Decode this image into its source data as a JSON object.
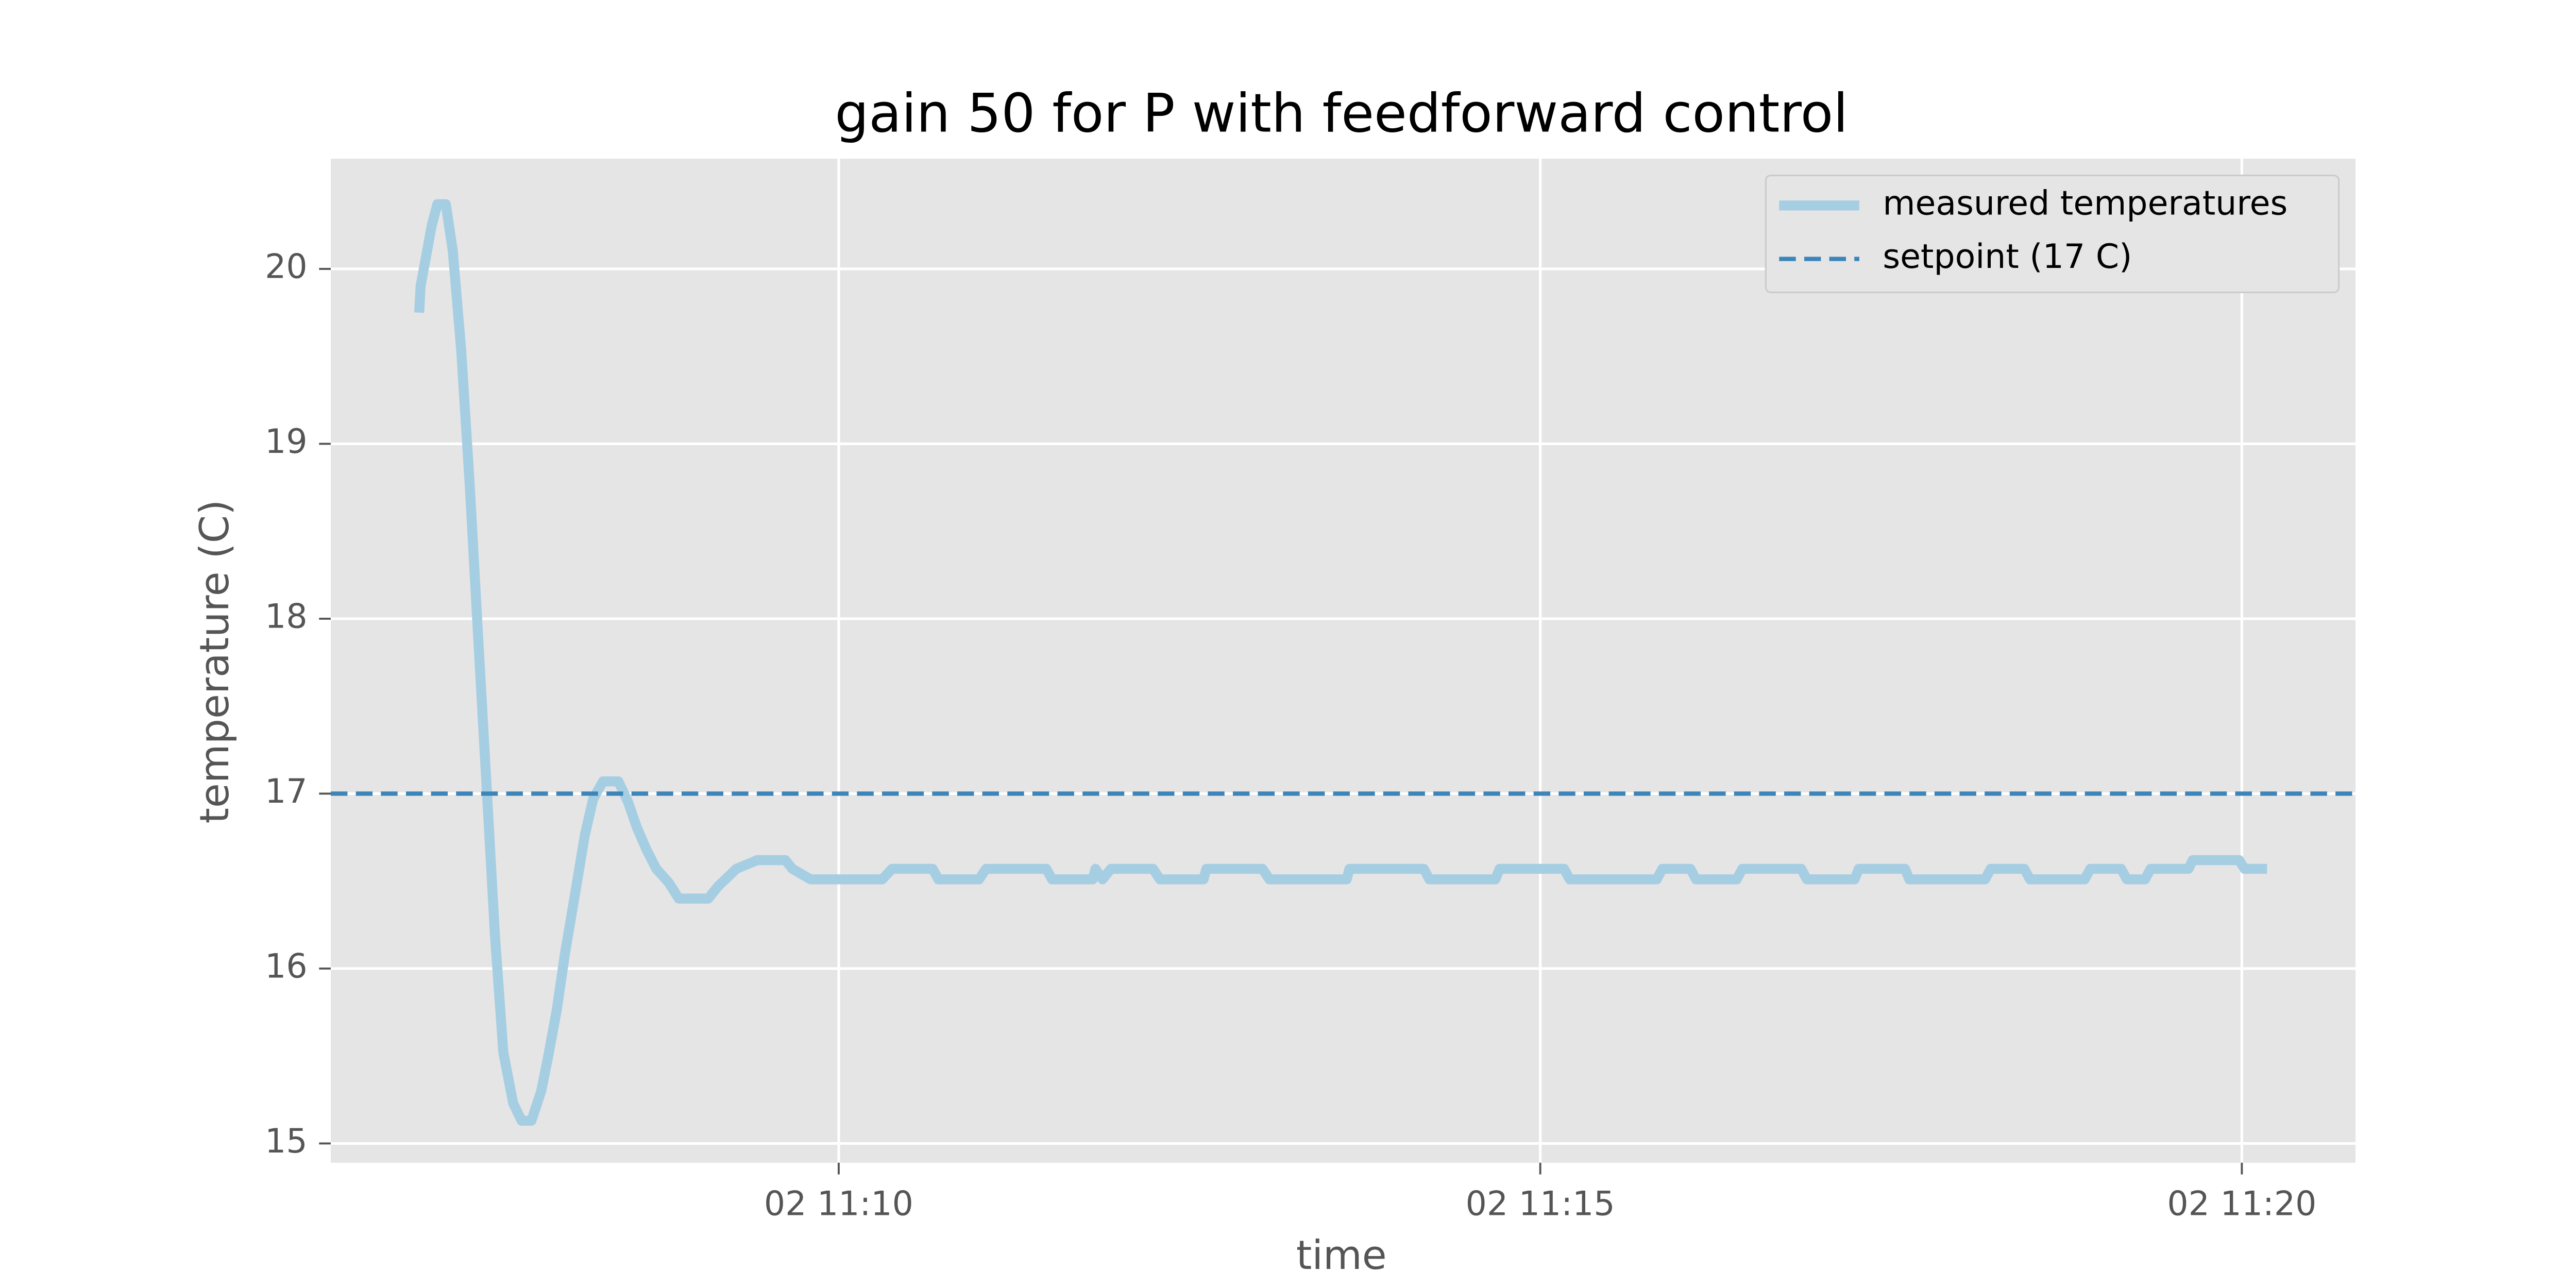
{
  "chart_data": {
    "type": "line",
    "title": "gain 50 for P with feedforward control",
    "xlabel": "time",
    "ylabel": "temperature (C)",
    "xlim": [
      6.38,
      20.81
    ],
    "xticks": [
      {
        "value": 10,
        "label": "02 11:10"
      },
      {
        "value": 15,
        "label": "02 11:15"
      },
      {
        "value": 20,
        "label": "02 11:20"
      }
    ],
    "ylim": [
      14.89,
      20.63
    ],
    "yticks": [
      15,
      16,
      17,
      18,
      19,
      20
    ],
    "grid": true,
    "legend": "upper right",
    "series": [
      {
        "name": "measured temperatures",
        "color": "#a6cee3",
        "x": [
          7.01,
          7.02,
          7.1,
          7.14,
          7.2,
          7.25,
          7.31,
          7.37,
          7.43,
          7.49,
          7.55,
          7.61,
          7.68,
          7.74,
          7.81,
          7.88,
          7.93,
          7.99,
          8.05,
          8.13,
          8.19,
          8.25,
          8.32,
          8.43,
          8.5,
          8.56,
          8.63,
          8.7,
          8.79,
          8.86,
          9.07,
          9.14,
          9.27,
          9.42,
          9.62,
          9.67,
          9.8,
          10.31,
          10.38,
          10.67,
          10.71,
          11.0,
          11.05,
          11.48,
          11.52,
          11.81,
          11.83,
          11.88,
          11.94,
          12.24,
          12.29,
          12.6,
          12.62,
          13.02,
          13.07,
          13.62,
          13.64,
          14.17,
          14.21,
          14.68,
          14.71,
          15.17,
          15.21,
          15.83,
          15.87,
          16.07,
          16.11,
          16.4,
          16.44,
          16.86,
          16.9,
          17.24,
          17.27,
          17.6,
          17.63,
          18.17,
          18.21,
          18.45,
          18.49,
          18.88,
          18.92,
          19.14,
          19.18,
          19.31,
          19.35,
          19.62,
          19.65,
          19.98,
          20.02,
          20.18
        ],
        "values": [
          19.75,
          19.9,
          20.25,
          20.37,
          20.37,
          20.1,
          19.53,
          18.77,
          17.9,
          17.05,
          16.19,
          15.52,
          15.23,
          15.13,
          15.13,
          15.3,
          15.5,
          15.76,
          16.09,
          16.47,
          16.76,
          16.97,
          17.07,
          17.07,
          16.95,
          16.81,
          16.68,
          16.57,
          16.49,
          16.4,
          16.4,
          16.47,
          16.57,
          16.62,
          16.62,
          16.57,
          16.51,
          16.51,
          16.57,
          16.57,
          16.51,
          16.51,
          16.57,
          16.57,
          16.51,
          16.51,
          16.57,
          16.51,
          16.57,
          16.57,
          16.51,
          16.51,
          16.57,
          16.57,
          16.51,
          16.51,
          16.57,
          16.57,
          16.51,
          16.51,
          16.57,
          16.57,
          16.51,
          16.51,
          16.57,
          16.57,
          16.51,
          16.51,
          16.57,
          16.57,
          16.51,
          16.51,
          16.57,
          16.57,
          16.51,
          16.51,
          16.57,
          16.57,
          16.51,
          16.51,
          16.57,
          16.57,
          16.51,
          16.51,
          16.57,
          16.57,
          16.62,
          16.62,
          16.57,
          16.57
        ]
      },
      {
        "name": "setpoint (17 C)",
        "color": "#3d85b9",
        "value": 17,
        "style": "dashed"
      }
    ]
  }
}
